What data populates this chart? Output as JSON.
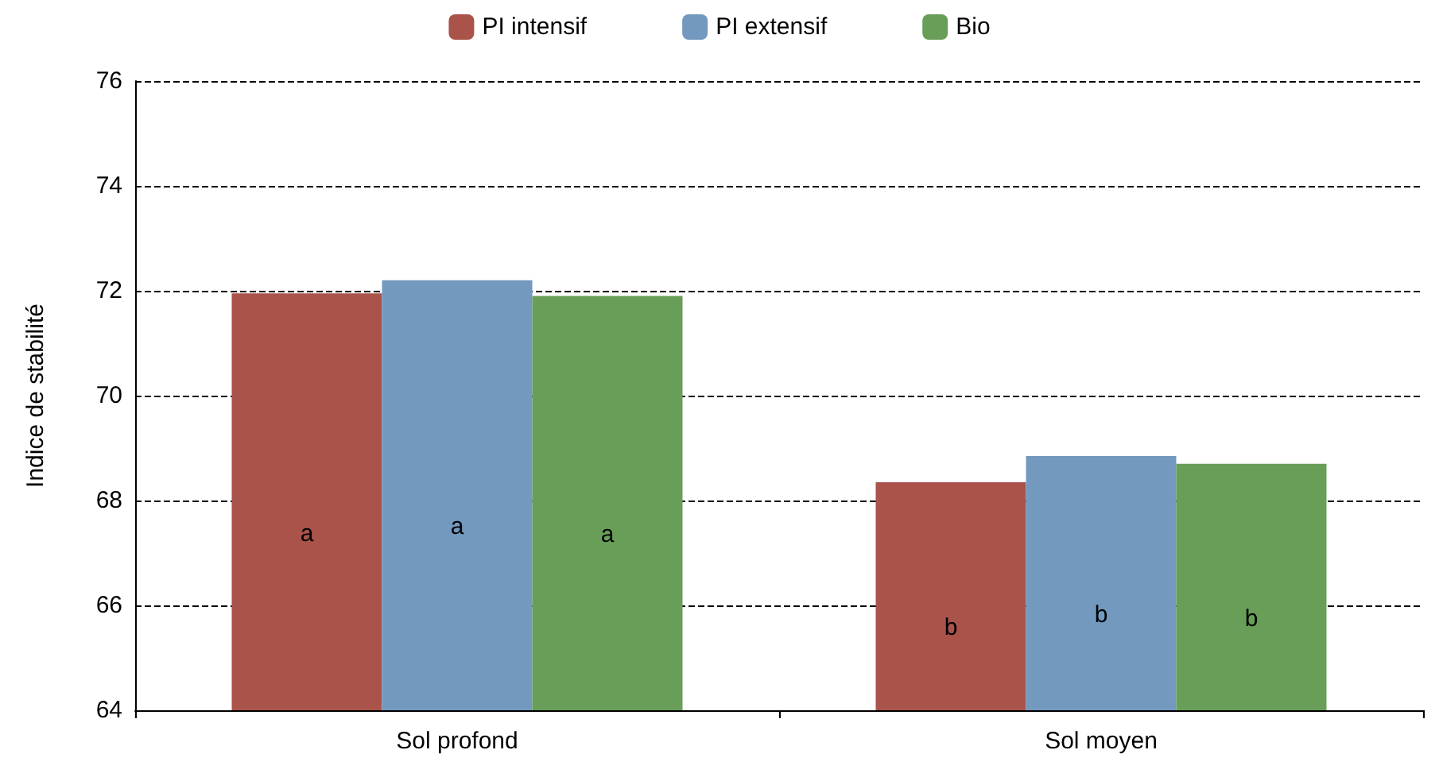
{
  "chart_data": {
    "type": "bar",
    "ylabel": "Indice de stabilité",
    "categories": [
      "Sol profond",
      "Sol moyen"
    ],
    "series": [
      {
        "name": "PI intensif",
        "color": "#a9534b",
        "values": [
          71.95,
          68.35
        ],
        "value_labels": [
          "a",
          "b"
        ]
      },
      {
        "name": "PI extensif",
        "color": "#7399bf",
        "values": [
          72.2,
          68.85
        ],
        "value_labels": [
          "a",
          "b"
        ]
      },
      {
        "name": "Bio",
        "color": "#699e58",
        "values": [
          71.9,
          68.7
        ],
        "value_labels": [
          "a",
          "b"
        ]
      }
    ],
    "ylim": [
      64,
      76
    ],
    "yticks": [
      64,
      66,
      68,
      70,
      72,
      74,
      76
    ],
    "grid": "y",
    "legend": "top"
  }
}
